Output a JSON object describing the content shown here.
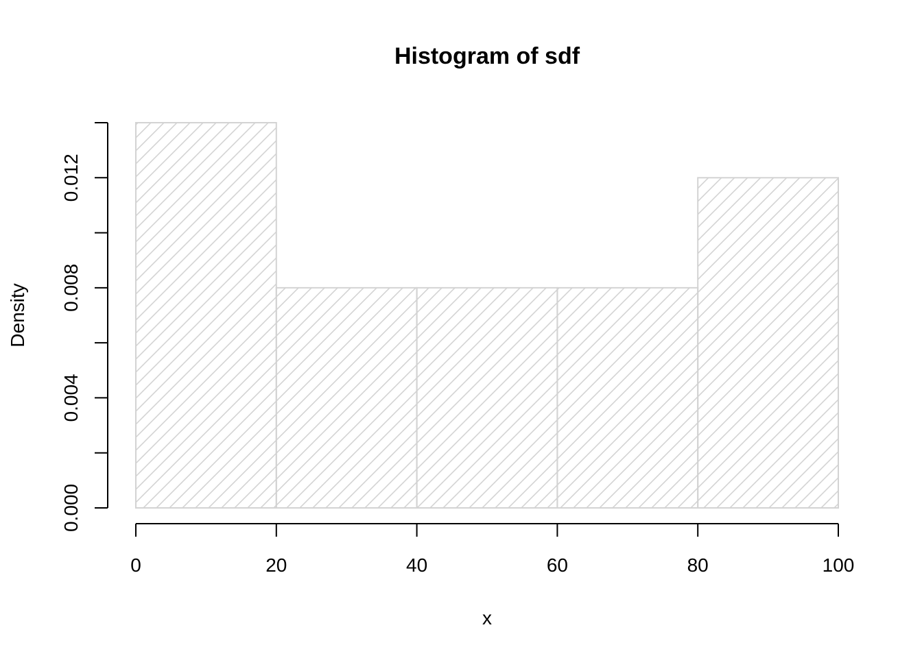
{
  "chart_data": {
    "type": "bar",
    "subtype": "histogram",
    "title": "Histogram of sdf",
    "xlabel": "x",
    "ylabel": "Density",
    "bins": [
      {
        "from": 0,
        "to": 20,
        "density": 0.014
      },
      {
        "from": 20,
        "to": 40,
        "density": 0.008
      },
      {
        "from": 40,
        "to": 60,
        "density": 0.008
      },
      {
        "from": 60,
        "to": 80,
        "density": 0.008
      },
      {
        "from": 80,
        "to": 100,
        "density": 0.012
      }
    ],
    "xlim": [
      0,
      100
    ],
    "ylim": [
      0,
      0.014
    ],
    "x_ticks": [
      "0",
      "20",
      "40",
      "60",
      "80",
      "100"
    ],
    "y_tick_values": [
      0,
      0.002,
      0.004,
      0.006,
      0.008,
      0.01,
      0.012,
      0.014
    ],
    "y_tick_labels": [
      {
        "value": 0,
        "label": "0.000"
      },
      {
        "value": 0.004,
        "label": "0.004"
      },
      {
        "value": 0.008,
        "label": "0.008"
      },
      {
        "value": 0.012,
        "label": "0.012"
      }
    ],
    "fill": "hatched",
    "bar_color": "#d3d3d3",
    "grid": false
  }
}
